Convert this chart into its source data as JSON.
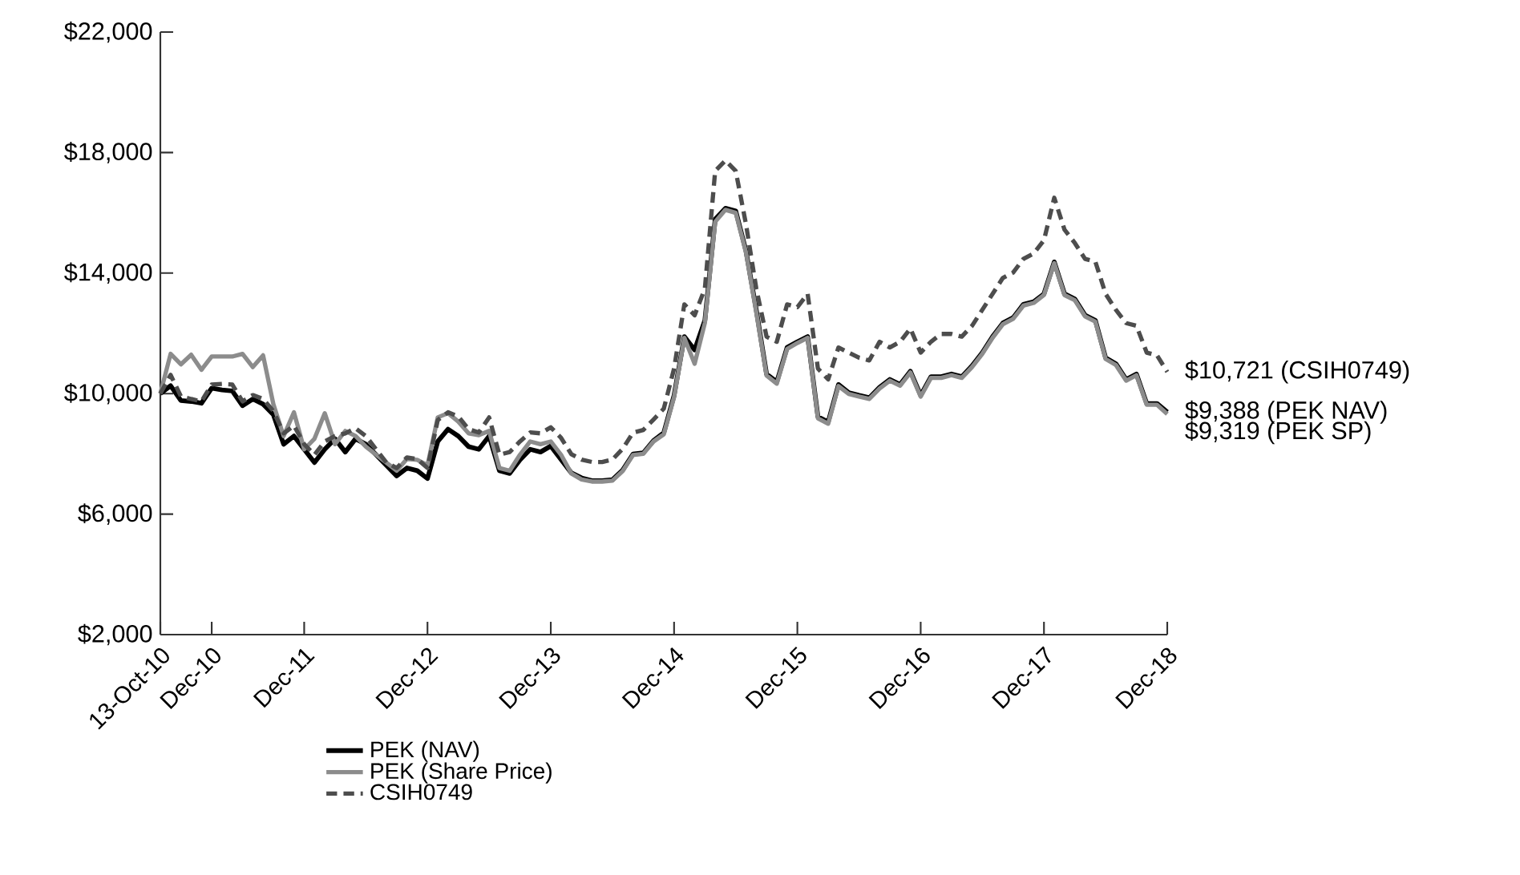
{
  "chart_data": {
    "type": "line",
    "categories": [
      "13-Oct-10",
      null,
      null,
      null,
      null,
      "Dec-10",
      null,
      null,
      null,
      null,
      null,
      null,
      null,
      null,
      "Dec-11",
      null,
      null,
      null,
      null,
      null,
      null,
      null,
      null,
      null,
      null,
      null,
      "Dec-12",
      null,
      null,
      null,
      null,
      null,
      null,
      null,
      null,
      null,
      null,
      null,
      "Dec-13",
      null,
      null,
      null,
      null,
      null,
      null,
      null,
      null,
      null,
      null,
      null,
      "Dec-14",
      null,
      null,
      null,
      null,
      null,
      null,
      null,
      null,
      null,
      null,
      null,
      "Dec-15",
      null,
      null,
      null,
      null,
      null,
      null,
      null,
      null,
      null,
      null,
      null,
      "Dec-16",
      null,
      null,
      null,
      null,
      null,
      null,
      null,
      null,
      null,
      null,
      null,
      "Dec-17",
      null,
      null,
      null,
      null,
      null,
      null,
      null,
      null,
      null,
      null,
      null,
      "Dec-18"
    ],
    "series": [
      {
        "name": "PEK (NAV)",
        "color": "#000000",
        "line_style": "solid",
        "values": [
          10000,
          10260,
          9770,
          9740,
          9680,
          10180,
          10120,
          10090,
          9600,
          9820,
          9650,
          9300,
          8320,
          8590,
          8150,
          7710,
          8150,
          8500,
          8060,
          8500,
          8320,
          7970,
          7620,
          7270,
          7530,
          7440,
          7180,
          8410,
          8820,
          8590,
          8240,
          8150,
          8590,
          7440,
          7350,
          7800,
          8150,
          8060,
          8260,
          7810,
          7370,
          7200,
          7110,
          7110,
          7140,
          7460,
          7990,
          8030,
          8440,
          8700,
          9940,
          11890,
          11450,
          12430,
          15790,
          16150,
          16060,
          14730,
          12780,
          10650,
          10390,
          11530,
          11720,
          11890,
          9230,
          9060,
          10300,
          10030,
          9940,
          9860,
          10210,
          10470,
          10300,
          10740,
          9940,
          10560,
          10560,
          10650,
          10560,
          10920,
          11360,
          11890,
          12340,
          12520,
          12960,
          13050,
          13310,
          14370,
          13310,
          13140,
          12600,
          12430,
          11190,
          10990,
          10470,
          10650,
          9670,
          9670,
          9388
        ]
      },
      {
        "name": "PEK (Share Price)",
        "color": "#8c8c8c",
        "line_style": "solid",
        "values": [
          10000,
          11320,
          10970,
          11290,
          10790,
          11230,
          11230,
          11230,
          11320,
          10880,
          11270,
          9650,
          8590,
          9380,
          8150,
          8500,
          9350,
          8320,
          8760,
          8590,
          8240,
          7970,
          7710,
          7440,
          7830,
          7800,
          7620,
          9210,
          9350,
          9070,
          8680,
          8620,
          8760,
          7530,
          7440,
          7970,
          8410,
          8320,
          8410,
          7970,
          7350,
          7150,
          7080,
          7080,
          7110,
          7430,
          7960,
          8000,
          8410,
          8650,
          9880,
          11850,
          10990,
          12350,
          15700,
          16100,
          16000,
          14680,
          12700,
          10600,
          10330,
          11480,
          11680,
          11850,
          9180,
          9000,
          10250,
          9990,
          9900,
          9820,
          10170,
          10430,
          10260,
          10700,
          9900,
          10520,
          10520,
          10610,
          10520,
          10880,
          11320,
          11850,
          12300,
          12480,
          12920,
          13010,
          13270,
          14330,
          13270,
          13100,
          12560,
          12390,
          11150,
          10950,
          10430,
          10610,
          9630,
          9630,
          9319
        ]
      },
      {
        "name": "CSIH0749",
        "color": "#4d4d4d",
        "line_style": "dashed",
        "values": [
          10000,
          10620,
          9910,
          9820,
          9740,
          10300,
          10320,
          10300,
          9740,
          9950,
          9820,
          9420,
          8680,
          8940,
          8320,
          7970,
          8410,
          8590,
          8680,
          8850,
          8590,
          8150,
          7710,
          7530,
          7880,
          7830,
          7530,
          9120,
          9380,
          9240,
          8820,
          8710,
          9210,
          7970,
          8060,
          8410,
          8710,
          8680,
          8880,
          8530,
          7990,
          7810,
          7730,
          7730,
          7810,
          8170,
          8700,
          8790,
          9140,
          9500,
          10830,
          12960,
          12600,
          13490,
          17390,
          17740,
          17390,
          15620,
          13490,
          11890,
          11720,
          12960,
          12870,
          13310,
          10830,
          10470,
          11530,
          11360,
          11190,
          11100,
          11720,
          11530,
          11720,
          12160,
          11360,
          11720,
          11980,
          11980,
          11890,
          12250,
          12780,
          13310,
          13840,
          14020,
          14470,
          14650,
          15090,
          16500,
          15440,
          15000,
          14470,
          14380,
          13310,
          12780,
          12340,
          12250,
          11360,
          11270,
          10721
        ]
      }
    ],
    "ylim": [
      2000,
      22000
    ],
    "yticks": [
      {
        "value": 2000,
        "label": "$2,000"
      },
      {
        "value": 6000,
        "label": "$6,000"
      },
      {
        "value": 10000,
        "label": "$10,000"
      },
      {
        "value": 14000,
        "label": "$14,000"
      },
      {
        "value": 18000,
        "label": "$18,000"
      },
      {
        "value": 22000,
        "label": "$22,000"
      }
    ],
    "legend": "bottom",
    "annotations": [
      {
        "text": "$10,721 (CSIH0749)",
        "x": "Dec-18",
        "y": 10721
      },
      {
        "text": "$9,388 (PEK NAV)",
        "x": "Dec-18",
        "y": 9388
      },
      {
        "text": "$9,319 (PEK SP)",
        "x": "Dec-18",
        "y": 9319
      }
    ]
  }
}
